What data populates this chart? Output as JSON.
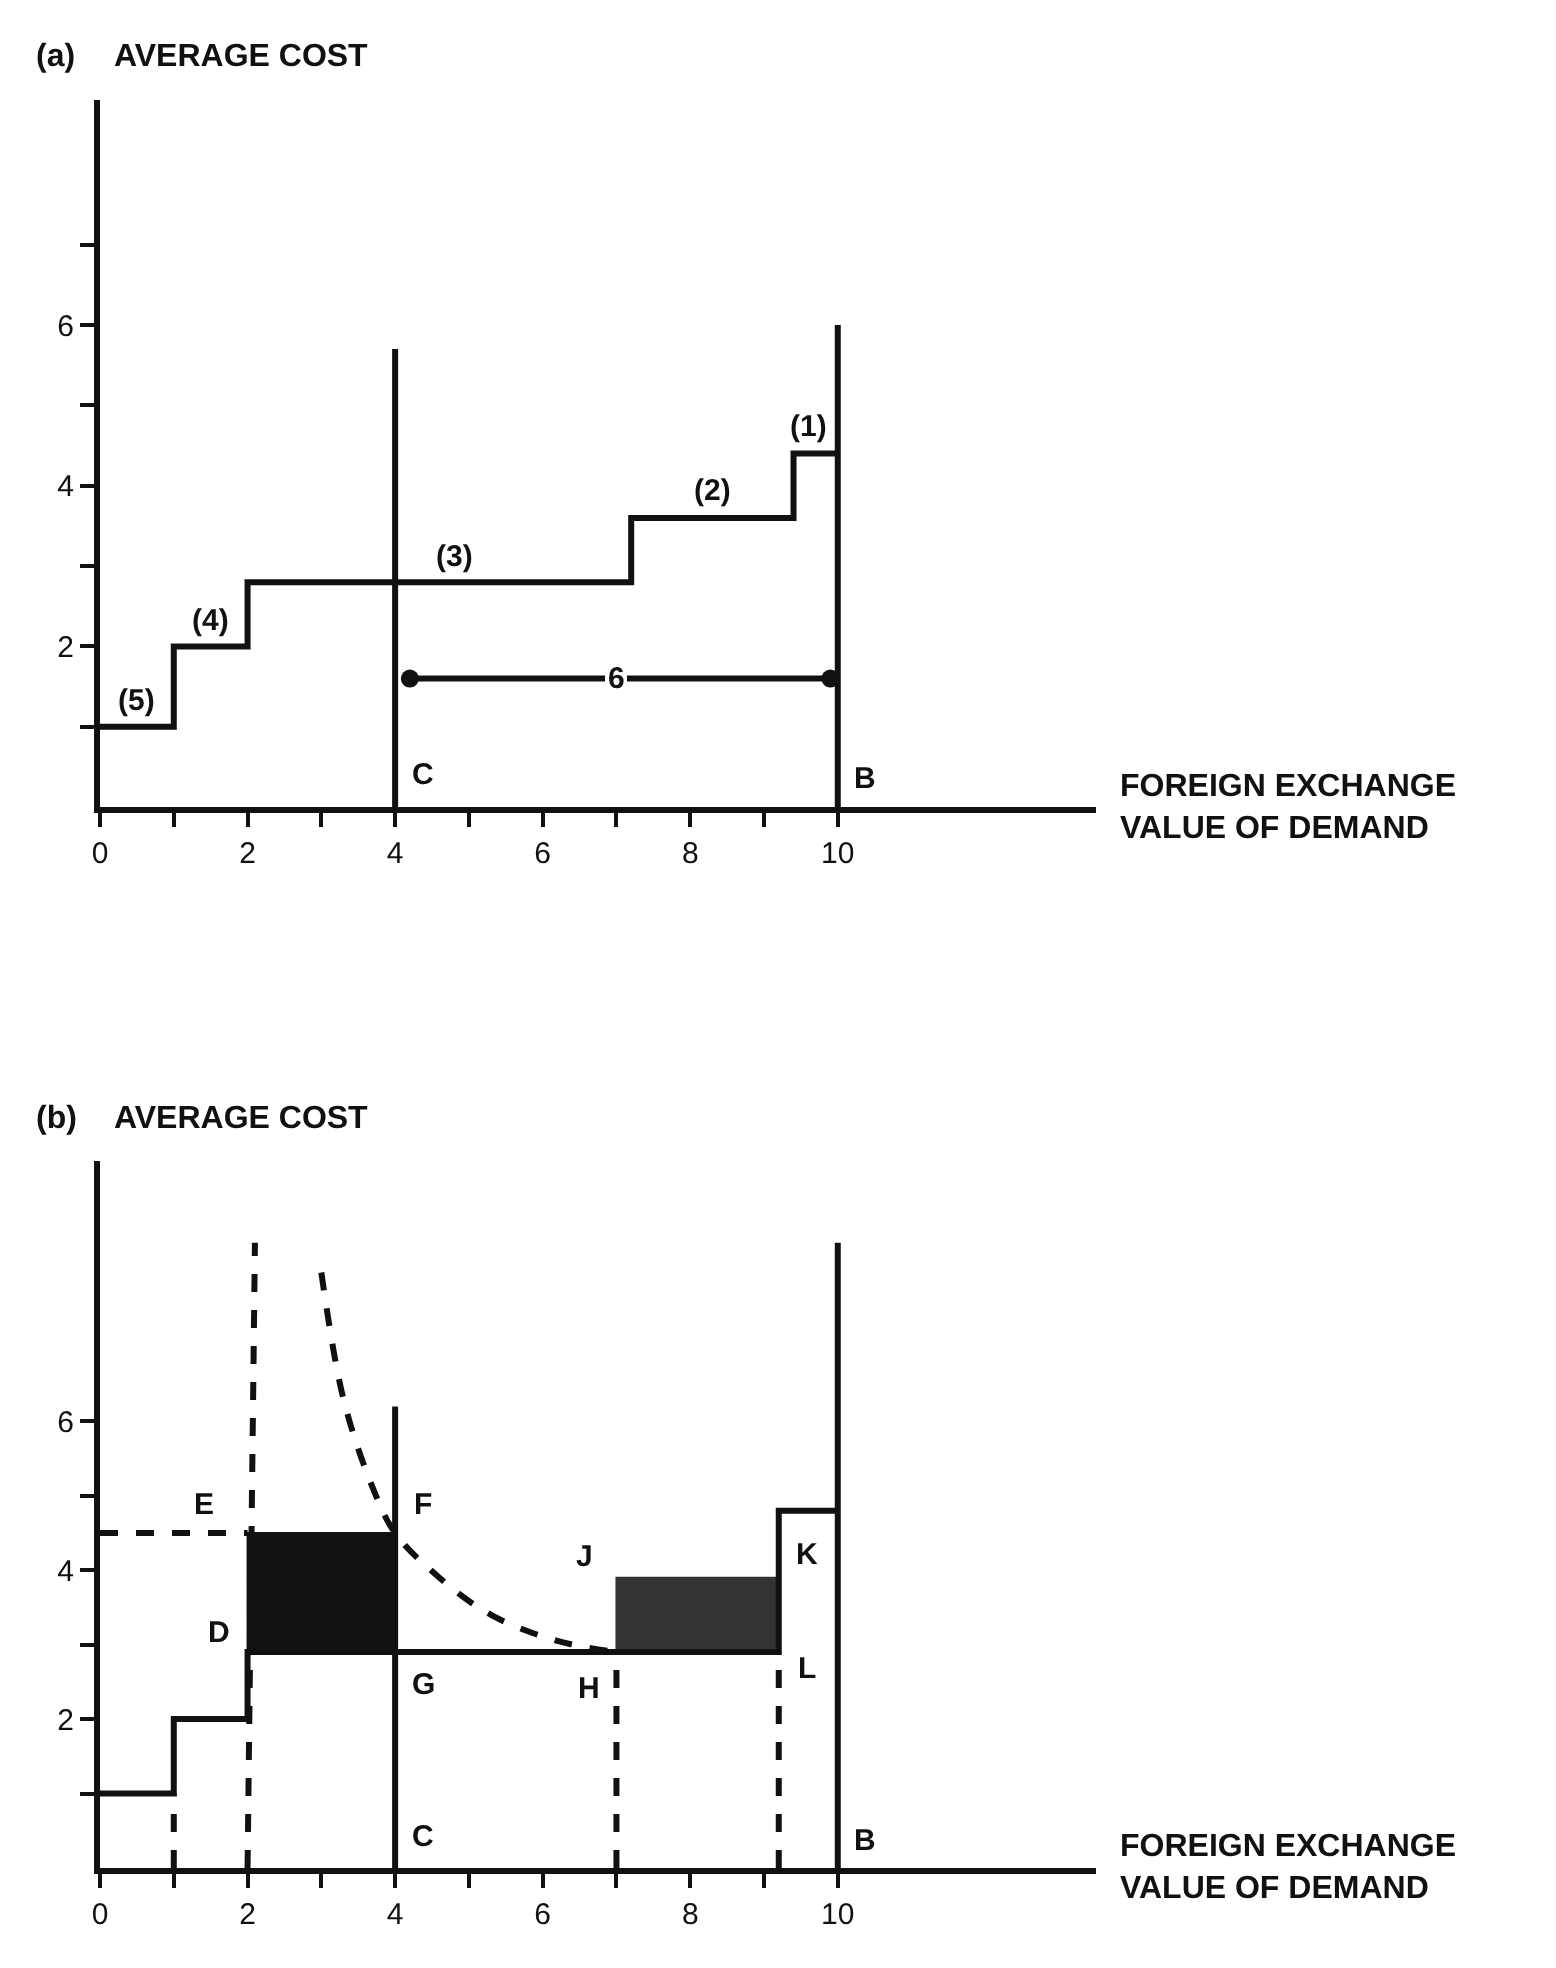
{
  "chart_data": [
    {
      "type": "step",
      "title": "(a)",
      "ylabel": "AVERAGE COST",
      "xlabel": "FOREIGN EXCHANGE\nVALUE OF DEMAND",
      "xlim": [
        0,
        13.5
      ],
      "ylim": [
        0,
        8.8
      ],
      "xticks": [
        0,
        {
          "value": 1,
          "label": null
        },
        2,
        {
          "value": 3,
          "label": null
        },
        4,
        {
          "value": 5,
          "label": null
        },
        6,
        {
          "value": 7,
          "label": null
        },
        8,
        {
          "value": 9,
          "label": null
        },
        10
      ],
      "yticks": [
        {
          "value": 1,
          "label": null
        },
        2,
        {
          "value": 3,
          "label": null
        },
        4,
        {
          "value": 5,
          "label": null
        },
        6,
        {
          "value": 7,
          "label": null
        }
      ],
      "series": [
        {
          "color": "#111111",
          "x": [
            0,
            1,
            2,
            7.2,
            9.4,
            10
          ],
          "values": [
            1,
            2,
            2.8,
            3.6,
            4.4,
            4.4
          ]
        },
        {
          "type": "line",
          "color": "#111111",
          "x": [
            4,
            4
          ],
          "values": [
            0,
            5.7
          ]
        },
        {
          "type": "line",
          "color": "#111111",
          "x": [
            10,
            10
          ],
          "values": [
            0,
            6
          ]
        },
        {
          "type": "line",
          "color": "#111111",
          "marker": "circle",
          "x": [
            4.2,
            9.9
          ],
          "values": [
            1.6,
            1.6
          ]
        }
      ],
      "annotations": [
        {
          "text": "(5)",
          "x": 0.5,
          "y": 1
        },
        {
          "text": "(4)",
          "x": 1.5,
          "y": 2
        },
        {
          "text": "(3)",
          "x": 4.8,
          "y": 2.8
        },
        {
          "text": "(2)",
          "x": 8.3,
          "y": 3.6
        },
        {
          "text": "(1)",
          "x": 9.7,
          "y": 4.4
        },
        {
          "text": "6",
          "x": 7,
          "y": 1.6
        },
        {
          "text": "C",
          "x": 4,
          "y": 0
        },
        {
          "text": "B",
          "x": 10,
          "y": 0
        }
      ]
    },
    {
      "type": "step",
      "title": "(b)",
      "ylabel": "AVERAGE COST",
      "xlabel": "FOREIGN EXCHANGE\nVALUE OF DEMAND",
      "xlim": [
        0,
        13.5
      ],
      "ylim": [
        0,
        9.5
      ],
      "xticks": [
        0,
        {
          "value": 1,
          "label": null
        },
        2,
        {
          "value": 3,
          "label": null
        },
        4,
        {
          "value": 5,
          "label": null
        },
        6,
        {
          "value": 7,
          "label": null
        },
        8,
        {
          "value": 9,
          "label": null
        },
        10
      ],
      "yticks": [
        {
          "value": 1,
          "label": null
        },
        2,
        {
          "value": 3,
          "label": null
        },
        4,
        {
          "value": 5,
          "label": null
        },
        6
      ],
      "series": [
        {
          "type": "area",
          "color": "#111111",
          "x": [
            2,
            2,
            4,
            4,
            2
          ],
          "values": [
            2.9,
            4.5,
            4.5,
            2.9,
            2.9
          ]
        },
        {
          "type": "area",
          "color": "#333333",
          "x": [
            7,
            7,
            9.2,
            9.2,
            7
          ],
          "values": [
            2.9,
            3.9,
            3.9,
            2.9,
            2.9
          ]
        },
        {
          "color": "#111111",
          "x": [
            0,
            1,
            2,
            7,
            9.2,
            10
          ],
          "values": [
            1,
            2,
            2.9,
            2.9,
            4.8,
            4.8
          ]
        },
        {
          "type": "line",
          "color": "#111111",
          "x": [
            4,
            4
          ],
          "values": [
            0,
            6.2
          ]
        },
        {
          "type": "line",
          "color": "#111111",
          "x": [
            10,
            10
          ],
          "values": [
            0,
            8.4
          ]
        },
        {
          "type": "line",
          "color": "#111111",
          "line_style": "dashed",
          "x": [
            0,
            2
          ],
          "values": [
            4.5,
            4.5
          ]
        },
        {
          "type": "line",
          "color": "#111111",
          "line_style": "dashed",
          "x": [
            1,
            1
          ],
          "values": [
            0,
            1
          ]
        },
        {
          "type": "line",
          "color": "#111111",
          "line_style": "dashed",
          "x": [
            2,
            2.1
          ],
          "values": [
            0,
            8.4
          ]
        },
        {
          "type": "line",
          "color": "#111111",
          "line_style": "dashed",
          "x": [
            7,
            7
          ],
          "values": [
            0,
            2.9
          ]
        },
        {
          "type": "line",
          "color": "#111111",
          "line_style": "dashed",
          "x": [
            9.2,
            9.2
          ],
          "values": [
            0,
            2.9
          ]
        },
        {
          "type": "line",
          "color": "#111111",
          "line_style": "dashed",
          "x": [
            3.0,
            3.3,
            3.7,
            4.0,
            4.6,
            5.3,
            6.2,
            7.0
          ],
          "values": [
            8.0,
            6.3,
            5.1,
            4.5,
            3.9,
            3.4,
            3.05,
            2.9
          ]
        }
      ],
      "annotations": [
        {
          "text": "E",
          "x": 1.4,
          "y": 4.5
        },
        {
          "text": "F",
          "x": 4,
          "y": 4.5
        },
        {
          "text": "D",
          "x": 2,
          "y": 2.9
        },
        {
          "text": "G",
          "x": 4,
          "y": 2.9
        },
        {
          "text": "H",
          "x": 7,
          "y": 2.9
        },
        {
          "text": "J",
          "x": 7,
          "y": 3.9
        },
        {
          "text": "K",
          "x": 9.2,
          "y": 4.8
        },
        {
          "text": "L",
          "x": 9.2,
          "y": 2.9
        },
        {
          "text": "C",
          "x": 4,
          "y": 0
        },
        {
          "text": "B",
          "x": 10,
          "y": 0
        }
      ]
    }
  ]
}
